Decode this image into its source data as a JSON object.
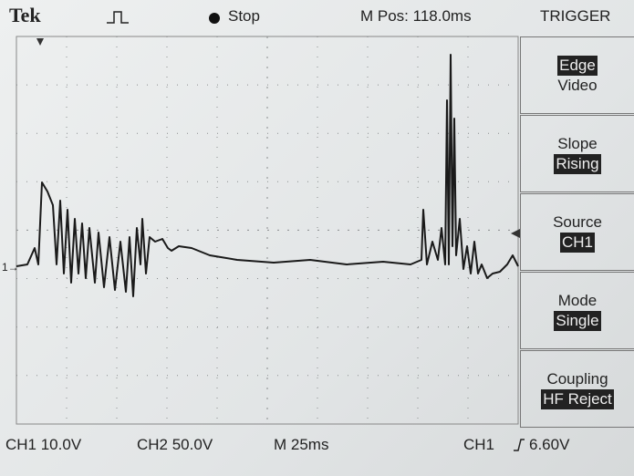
{
  "header": {
    "brand": "Tek",
    "status": "Stop",
    "position": "M Pos: 118.0ms"
  },
  "menu": {
    "title": "TRIGGER",
    "items": [
      {
        "lines": [
          "Edge",
          "Video"
        ],
        "selected": 0
      },
      {
        "lines": [
          "Slope",
          "Rising"
        ],
        "selected": 1
      },
      {
        "lines": [
          "Source",
          "CH1"
        ],
        "selected": 1
      },
      {
        "lines": [
          "Mode",
          "Single"
        ],
        "selected": 1
      },
      {
        "lines": [
          "Coupling",
          "HF Reject"
        ],
        "selected": 1
      }
    ]
  },
  "footer": {
    "ch1_scale": "CH1 10.0V",
    "ch2_scale": "CH2 50.0V",
    "timebase": "M 25ms",
    "trigger_source": "CH1",
    "trigger_level": "6.60V"
  }
}
